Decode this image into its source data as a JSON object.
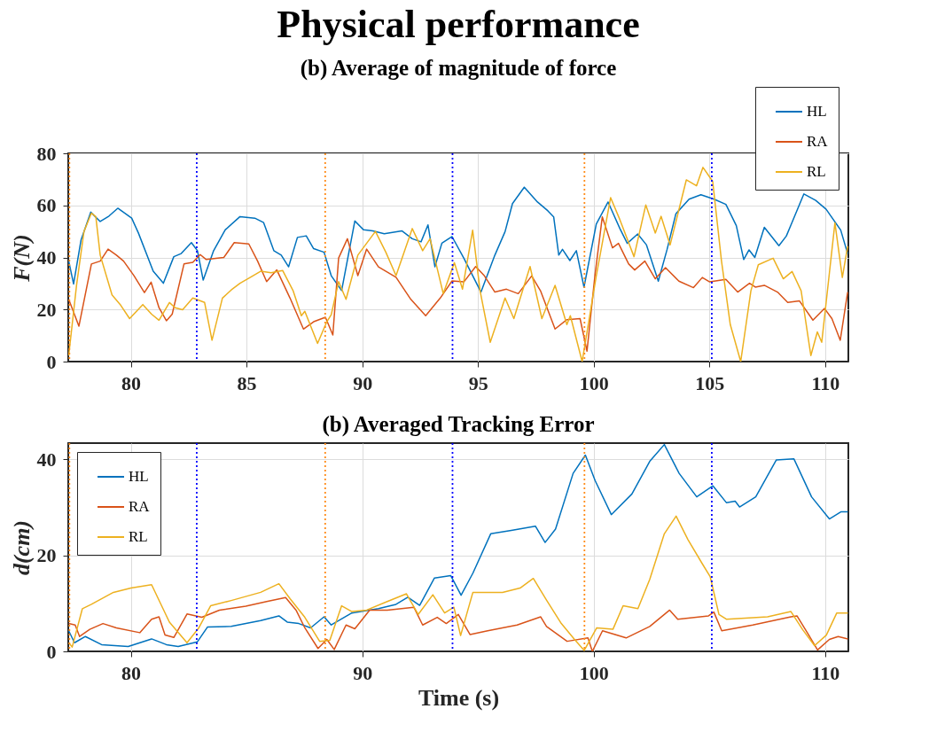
{
  "chart_data": [
    {
      "type": "line",
      "title": "Physical performance",
      "subtitle": "(b) Average of magnitude of force",
      "ylabel": "F(N)",
      "xlim": [
        77.3,
        111.0
      ],
      "xticks": [
        80,
        85,
        90,
        95,
        100,
        105,
        110
      ],
      "ylim": [
        0,
        80
      ],
      "yticks": [
        0,
        20,
        40,
        60,
        80
      ],
      "grid": true,
      "legend": "top right",
      "series": [
        {
          "name": "HL",
          "color": "#0072bd",
          "x": [
            77.32,
            77.53,
            77.85,
            78.27,
            78.68,
            79.06,
            79.44,
            80.04,
            80.33,
            80.97,
            81.41,
            81.86,
            82.18,
            82.62,
            82.88,
            83.13,
            83.58,
            84.08,
            84.72,
            85.36,
            85.74,
            86.18,
            86.5,
            86.82,
            87.2,
            87.58,
            87.9,
            88.35,
            88.66,
            89.11,
            89.68,
            90.06,
            90.45,
            90.95,
            91.72,
            92.16,
            92.54,
            92.84,
            93.14,
            93.44,
            93.88,
            94.39,
            95.13,
            95.73,
            96.17,
            96.49,
            97.0,
            97.57,
            98.02,
            98.27,
            98.49,
            98.65,
            98.97,
            99.25,
            99.58,
            100.11,
            100.62,
            101.13,
            101.45,
            101.9,
            102.28,
            102.79,
            103.17,
            103.55,
            104.12,
            104.63,
            105.2,
            105.71,
            106.16,
            106.48,
            106.71,
            106.96,
            107.37,
            108.0,
            108.32,
            109.08,
            109.59,
            110.04,
            110.67,
            110.97
          ],
          "values": [
            38.6,
            29.8,
            46.6,
            57.4,
            53.8,
            55.9,
            58.9,
            55.1,
            49.4,
            34.7,
            30.1,
            40.3,
            41.5,
            45.7,
            42.6,
            31.3,
            42.6,
            50.6,
            55.7,
            55.1,
            53.4,
            42.6,
            40.9,
            36.4,
            47.7,
            48.3,
            43.4,
            42.0,
            33.0,
            27.3,
            54.0,
            50.6,
            50.2,
            49.1,
            50.2,
            47.2,
            46.0,
            52.5,
            36.4,
            45.5,
            48.0,
            39.7,
            26.7,
            40.9,
            49.9,
            60.7,
            67.0,
            61.3,
            57.9,
            55.6,
            40.9,
            43.1,
            38.8,
            42.6,
            28.6,
            52.8,
            61.3,
            51.1,
            45.4,
            49.0,
            44.8,
            30.9,
            43.1,
            56.8,
            62.4,
            64.1,
            62.4,
            60.4,
            52.2,
            39.2,
            42.9,
            40.0,
            51.6,
            44.5,
            48.2,
            64.4,
            61.9,
            58.5,
            50.5,
            41.4
          ]
        },
        {
          "name": "RA",
          "color": "#d95319",
          "x": [
            77.32,
            77.76,
            78.3,
            78.68,
            79.02,
            79.38,
            79.69,
            80.14,
            80.59,
            80.88,
            81.22,
            81.54,
            81.79,
            82.3,
            82.68,
            83.0,
            83.26,
            84.02,
            84.47,
            85.1,
            85.48,
            85.87,
            86.31,
            86.88,
            87.46,
            87.9,
            88.41,
            88.73,
            88.98,
            89.36,
            89.81,
            90.19,
            90.7,
            91.46,
            92.1,
            92.74,
            93.37,
            93.88,
            94.39,
            94.9,
            95.28,
            95.73,
            96.23,
            96.74,
            97.32,
            97.7,
            98.33,
            98.84,
            99.41,
            99.71,
            100.05,
            100.37,
            100.81,
            101.07,
            101.51,
            101.77,
            102.21,
            102.66,
            103.1,
            103.68,
            104.31,
            104.69,
            105.01,
            105.71,
            106.22,
            106.73,
            106.98,
            107.37,
            107.94,
            108.38,
            108.89,
            109.47,
            109.97,
            110.29,
            110.65,
            110.97
          ],
          "values": [
            23.9,
            13.6,
            37.5,
            38.6,
            43.2,
            40.9,
            38.6,
            33.0,
            26.5,
            30.5,
            20.7,
            15.7,
            18.2,
            37.5,
            38.1,
            41.1,
            39.2,
            40.0,
            45.7,
            45.2,
            38.6,
            30.7,
            35.2,
            24.4,
            12.5,
            15.3,
            17.0,
            10.2,
            39.8,
            47.2,
            33.0,
            43.2,
            36.4,
            32.4,
            23.9,
            17.6,
            24.4,
            31.0,
            30.6,
            36.5,
            32.9,
            26.7,
            27.8,
            26.1,
            32.9,
            27.2,
            12.5,
            16.1,
            16.5,
            4.0,
            32.9,
            55.6,
            43.7,
            45.4,
            37.5,
            35.2,
            38.6,
            31.8,
            36.1,
            30.9,
            28.4,
            32.3,
            30.6,
            31.6,
            26.7,
            30.1,
            28.6,
            29.3,
            26.7,
            22.7,
            23.3,
            15.9,
            20.4,
            16.5,
            8.2,
            26.7
          ]
        },
        {
          "name": "RL",
          "color": "#edb120",
          "x": [
            77.32,
            77.66,
            77.98,
            78.3,
            78.49,
            78.68,
            79.19,
            79.57,
            79.95,
            80.52,
            80.9,
            81.22,
            81.67,
            81.92,
            82.24,
            82.68,
            83.19,
            83.51,
            83.96,
            84.34,
            84.72,
            85.17,
            85.61,
            86.06,
            86.56,
            87.01,
            87.37,
            87.52,
            88.07,
            88.47,
            88.66,
            88.98,
            89.3,
            89.81,
            90.57,
            91.02,
            91.46,
            92.16,
            92.61,
            92.93,
            93.5,
            93.98,
            94.33,
            94.77,
            95.09,
            95.53,
            96.17,
            96.55,
            97.25,
            97.76,
            98.33,
            98.84,
            98.99,
            99.5,
            100.11,
            100.73,
            101.13,
            101.74,
            102.25,
            102.66,
            102.91,
            103.3,
            104.0,
            104.44,
            104.72,
            105.14,
            105.52,
            105.9,
            106.35,
            106.79,
            107.11,
            107.75,
            108.19,
            108.57,
            108.96,
            109.38,
            109.66,
            109.85,
            110.42,
            110.74,
            110.97
          ],
          "values": [
            2.3,
            29.5,
            50.0,
            57.0,
            55.7,
            40.9,
            25.6,
            21.6,
            16.5,
            21.9,
            18.2,
            15.9,
            22.7,
            20.7,
            19.9,
            24.4,
            22.7,
            8.2,
            24.4,
            27.5,
            30.1,
            32.4,
            34.7,
            34.1,
            35.0,
            27.3,
            17.6,
            19.3,
            7.0,
            15.3,
            18.0,
            30.7,
            23.9,
            40.9,
            50.0,
            42.0,
            33.0,
            51.1,
            42.6,
            47.2,
            26.1,
            38.0,
            27.8,
            50.5,
            27.2,
            7.4,
            24.4,
            16.5,
            36.5,
            16.5,
            29.3,
            14.2,
            17.6,
            0,
            32.9,
            63.0,
            54.5,
            40.3,
            60.2,
            49.4,
            55.8,
            44.8,
            69.8,
            67.5,
            74.6,
            69.2,
            38.6,
            14.2,
            0,
            27.2,
            37.2,
            39.7,
            31.8,
            34.6,
            27.2,
            2.3,
            11.4,
            7.4,
            53.3,
            32.3,
            44.3
          ]
        }
      ],
      "ref_lines": [
        {
          "axis": "x",
          "value": 77.35,
          "color": "#ff8c1a",
          "line_style": "dotted"
        },
        {
          "axis": "x",
          "value": 82.85,
          "color": "#0000ff",
          "line_style": "dotted"
        },
        {
          "axis": "x",
          "value": 88.4,
          "color": "#ff8c1a",
          "line_style": "dotted"
        },
        {
          "axis": "x",
          "value": 93.9,
          "color": "#0000ff",
          "line_style": "dotted"
        },
        {
          "axis": "x",
          "value": 99.6,
          "color": "#ff8c1a",
          "line_style": "dotted"
        },
        {
          "axis": "x",
          "value": 105.1,
          "color": "#0000ff",
          "line_style": "dotted"
        }
      ]
    },
    {
      "type": "line",
      "title": "(b) Averaged Tracking Error",
      "xlabel": "Time (s)",
      "ylabel": "d(cm)",
      "xlim": [
        77.3,
        111.0
      ],
      "xticks": [
        80,
        90,
        100,
        110
      ],
      "ylim": [
        0,
        43.4
      ],
      "yticks": [
        0,
        20,
        40
      ],
      "grid": true,
      "legend": "top left",
      "series": [
        {
          "name": "HL",
          "color": "#0072bd",
          "x": [
            77.32,
            77.57,
            78.04,
            78.74,
            79.89,
            80.9,
            81.54,
            82.05,
            82.88,
            83.32,
            84.34,
            85.61,
            86.4,
            86.76,
            87.26,
            87.77,
            88.35,
            88.66,
            89.55,
            90.7,
            91.46,
            91.97,
            92.48,
            93.12,
            93.82,
            94.27,
            94.78,
            95.55,
            96.44,
            97.48,
            97.9,
            98.35,
            99.11,
            99.64,
            100.06,
            100.76,
            101.65,
            102.42,
            103.05,
            103.69,
            104.45,
            105.15,
            105.73,
            106.11,
            106.3,
            107.0,
            107.89,
            108.65,
            109.41,
            110.18,
            110.69,
            110.98
          ],
          "values": [
            4.3,
            1.8,
            3.1,
            1.4,
            1.0,
            2.6,
            1.4,
            1.0,
            2.0,
            5.1,
            5.2,
            6.4,
            7.4,
            6.1,
            5.8,
            4.9,
            7.2,
            5.5,
            8.0,
            8.9,
            9.8,
            11.3,
            9.6,
            15.3,
            15.8,
            11.7,
            16.3,
            24.5,
            25.2,
            26.1,
            22.7,
            25.5,
            37.1,
            40.9,
            35.6,
            28.5,
            32.8,
            39.6,
            43.1,
            37.1,
            32.2,
            34.5,
            31.0,
            31.3,
            30.1,
            32.2,
            39.9,
            40.1,
            32.2,
            27.6,
            29.1,
            29.1
          ]
        },
        {
          "name": "RA",
          "color": "#d95319",
          "x": [
            77.32,
            77.6,
            77.79,
            78.23,
            78.8,
            79.38,
            80.39,
            80.9,
            81.22,
            81.48,
            81.86,
            82.43,
            83.07,
            83.83,
            84.97,
            85.87,
            86.69,
            87.14,
            87.52,
            88.09,
            88.47,
            88.79,
            89.3,
            89.68,
            90.32,
            91.08,
            92.23,
            92.61,
            93.24,
            93.63,
            94.15,
            94.66,
            95.42,
            96.69,
            97.71,
            97.96,
            98.85,
            99.75,
            99.94,
            100.38,
            101.4,
            102.42,
            103.28,
            103.63,
            104.96,
            105.19,
            105.53,
            106.87,
            108.52,
            108.78,
            109.29,
            109.67,
            110.18,
            110.56,
            110.98
          ],
          "values": [
            5.8,
            5.5,
            3.1,
            4.6,
            5.8,
            4.9,
            3.9,
            6.7,
            7.2,
            3.4,
            2.9,
            7.8,
            7.1,
            8.6,
            9.4,
            10.4,
            11.2,
            8.6,
            4.9,
            0.6,
            2.5,
            0.4,
            5.5,
            4.7,
            8.6,
            8.6,
            9.2,
            5.5,
            7.1,
            5.8,
            7.7,
            3.5,
            4.3,
            5.5,
            7.2,
            5.2,
            2.1,
            2.8,
            0,
            4.3,
            2.8,
            5.2,
            8.6,
            6.7,
            7.4,
            8.2,
            4.3,
            5.5,
            7.2,
            7.4,
            3.4,
            0.3,
            2.5,
            3.1,
            2.6
          ]
        },
        {
          "name": "RL",
          "color": "#edb120",
          "x": [
            77.32,
            77.47,
            77.91,
            78.3,
            79.25,
            80.01,
            80.9,
            81.67,
            82.43,
            82.94,
            83.45,
            84.34,
            85.61,
            86.4,
            86.88,
            87.52,
            88.16,
            88.6,
            89.11,
            89.55,
            90.19,
            91.08,
            91.91,
            92.42,
            93.05,
            93.56,
            93.96,
            94.25,
            94.78,
            96.06,
            96.82,
            97.39,
            97.96,
            98.6,
            99.17,
            99.59,
            100.13,
            100.83,
            101.27,
            101.91,
            102.42,
            103.05,
            103.56,
            104.07,
            104.71,
            105.03,
            105.41,
            105.73,
            107.51,
            108.52,
            109.03,
            109.54,
            110.05,
            110.5,
            110.98
          ],
          "values": [
            1.8,
            0.9,
            8.9,
            9.8,
            12.3,
            13.2,
            13.9,
            6.1,
            1.8,
            4.9,
            9.5,
            10.6,
            12.3,
            14.1,
            11.0,
            7.1,
            2.1,
            2.3,
            9.5,
            8.3,
            8.6,
            10.4,
            12.0,
            7.7,
            11.8,
            8.0,
            9.2,
            3.3,
            12.3,
            12.3,
            13.2,
            15.2,
            10.7,
            5.8,
            2.5,
            0.2,
            4.9,
            4.6,
            9.5,
            8.9,
            15.0,
            24.5,
            28.2,
            23.3,
            18.1,
            15.6,
            7.7,
            6.7,
            7.2,
            8.3,
            4.5,
            1.2,
            3.4,
            8.0,
            8.0
          ]
        }
      ],
      "ref_lines": [
        {
          "axis": "x",
          "value": 77.35,
          "color": "#ff8c1a",
          "line_style": "dotted"
        },
        {
          "axis": "x",
          "value": 82.85,
          "color": "#0000ff",
          "line_style": "dotted"
        },
        {
          "axis": "x",
          "value": 88.4,
          "color": "#ff8c1a",
          "line_style": "dotted"
        },
        {
          "axis": "x",
          "value": 93.9,
          "color": "#0000ff",
          "line_style": "dotted"
        },
        {
          "axis": "x",
          "value": 99.6,
          "color": "#ff8c1a",
          "line_style": "dotted"
        },
        {
          "axis": "x",
          "value": 105.1,
          "color": "#0000ff",
          "line_style": "dotted"
        }
      ]
    }
  ]
}
